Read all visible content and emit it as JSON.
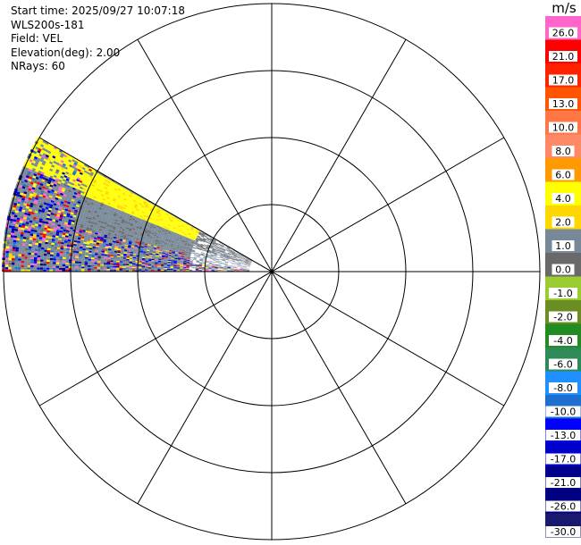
{
  "info": {
    "start_time": "Start time: 2025/09/27 10:07:18",
    "site": "WLS200s-181",
    "field": "Field: VEL",
    "elevation": "Elevation(deg): 2.00",
    "nrays": "NRays: 60"
  },
  "colorbar": {
    "unit": "m/s",
    "bins": [
      {
        "label": "26.0",
        "color": "#ff66cc"
      },
      {
        "label": "21.0",
        "color": "#ff0000"
      },
      {
        "label": "17.0",
        "color": "#ff2200"
      },
      {
        "label": "13.0",
        "color": "#ff5500"
      },
      {
        "label": "10.0",
        "color": "#ff7744"
      },
      {
        "label": "8.0",
        "color": "#ff8866"
      },
      {
        "label": "6.0",
        "color": "#ff9900"
      },
      {
        "label": "4.0",
        "color": "#ffff00"
      },
      {
        "label": "2.0",
        "color": "#ffd700"
      },
      {
        "label": "1.0",
        "color": "#778899"
      },
      {
        "label": "0.0",
        "color": "#696969"
      },
      {
        "label": "-1.0",
        "color": "#9acd32"
      },
      {
        "label": "-2.0",
        "color": "#6b8e23"
      },
      {
        "label": "-4.0",
        "color": "#228b22"
      },
      {
        "label": "-6.0",
        "color": "#2e8b57"
      },
      {
        "label": "-8.0",
        "color": "#1e90ff"
      },
      {
        "label": "-10.0",
        "color": "#1e6fd0"
      },
      {
        "label": "-13.0",
        "color": "#0000ff"
      },
      {
        "label": "-17.0",
        "color": "#0000cd"
      },
      {
        "label": "-21.0",
        "color": "#00008b"
      },
      {
        "label": "-26.0",
        "color": "#000080"
      },
      {
        "label": "-30.0",
        "color": "#191970"
      }
    ]
  },
  "chart_data": {
    "type": "heatmap",
    "subtype": "polar PPI radar velocity",
    "field": "VEL",
    "elevation_deg": 2.0,
    "nrays": 60,
    "range_rings": 4,
    "radial_spokes_every_deg": 30,
    "sector_azimuth_deg": [
      240,
      270
    ],
    "grid": true,
    "value_range": [
      -30.0,
      26.0
    ],
    "dominant_pattern": "yellow (2-4 m/s) band near lower edge of sector, gray (0-1 m/s) interior, mixed noise at far range"
  }
}
